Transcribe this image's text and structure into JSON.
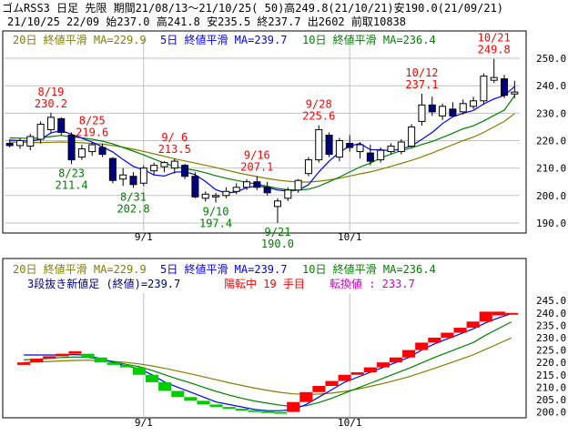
{
  "header": {
    "line1": "ゴムRSS3 日足 先限 期間21/08/13～21/10/25( 50)高249.8(21/10/21)安190.0(21/09/21)",
    "line2": "21/10/25 22/09 始237.0 高241.8 安235.5 終237.7 出2602 前取10838"
  },
  "upper_legend": {
    "ma20": "20日 終値平滑 MA=229.9",
    "ma5": "5日 終値平滑 MA=239.7",
    "ma10": "10日 終値平滑 MA=236.4"
  },
  "lower_legend": {
    "ma20": "20日 終値平滑 MA=229.9",
    "ma5": "5日 終値平滑 MA=239.7",
    "ma10": "10日 終値平滑 MA=236.4",
    "line2_a": "3段抜き新値足 (終値)=239.7",
    "line2_b": "陽転中 19 手目",
    "line2_c": "転換値 : 233.7"
  },
  "colors": {
    "up": "#ffffff",
    "down": "#000080",
    "ma5": "#0000ff",
    "ma10": "#008000",
    "ma20": "#808000",
    "label_high": "#ff0000",
    "label_low": "#008000",
    "kagi_up": "#ff0000",
    "kagi_down": "#00cc00",
    "grid": "#c0c0c0"
  },
  "chart_data": [
    {
      "type": "candlestick",
      "title": "ゴムRSS3 日足 先限",
      "x_ticks": [
        "9/1",
        "10/1"
      ],
      "ylim": [
        187,
        254
      ],
      "y_ticks": [
        190.0,
        200.0,
        210.0,
        220.0,
        230.0,
        240.0,
        250.0
      ],
      "candles": [
        {
          "date": "8/13",
          "o": 219.0,
          "h": 220.5,
          "l": 217.5,
          "c": 218.2
        },
        {
          "date": "8/16",
          "o": 218.2,
          "h": 221.0,
          "l": 217.0,
          "c": 220.0
        },
        {
          "date": "8/17",
          "o": 218.0,
          "h": 222.5,
          "l": 216.5,
          "c": 221.5
        },
        {
          "date": "8/18",
          "o": 220.5,
          "h": 227.0,
          "l": 219.0,
          "c": 226.0
        },
        {
          "date": "8/19",
          "o": 224.0,
          "h": 230.2,
          "l": 223.0,
          "c": 228.5
        },
        {
          "date": "8/20",
          "o": 228.0,
          "h": 228.5,
          "l": 222.0,
          "c": 223.0
        },
        {
          "date": "8/23",
          "o": 222.0,
          "h": 223.0,
          "l": 211.4,
          "c": 213.0
        },
        {
          "date": "8/24",
          "o": 214.0,
          "h": 218.5,
          "l": 213.0,
          "c": 217.0
        },
        {
          "date": "8/25",
          "o": 216.0,
          "h": 219.6,
          "l": 214.5,
          "c": 218.5
        },
        {
          "date": "8/26",
          "o": 217.5,
          "h": 219.0,
          "l": 214.0,
          "c": 215.0
        },
        {
          "date": "8/27",
          "o": 213.5,
          "h": 214.0,
          "l": 204.5,
          "c": 205.5
        },
        {
          "date": "8/30",
          "o": 206.0,
          "h": 210.0,
          "l": 203.5,
          "c": 207.5
        },
        {
          "date": "8/31",
          "o": 207.0,
          "h": 208.5,
          "l": 202.8,
          "c": 204.0
        },
        {
          "date": "9/1",
          "o": 204.5,
          "h": 211.0,
          "l": 203.5,
          "c": 210.0
        },
        {
          "date": "9/2",
          "o": 209.0,
          "h": 212.0,
          "l": 207.5,
          "c": 211.0
        },
        {
          "date": "9/3",
          "o": 210.5,
          "h": 212.5,
          "l": 208.5,
          "c": 212.0
        },
        {
          "date": "9/6",
          "o": 210.0,
          "h": 213.5,
          "l": 208.0,
          "c": 212.5
        },
        {
          "date": "9/7",
          "o": 211.0,
          "h": 211.5,
          "l": 206.0,
          "c": 207.0
        },
        {
          "date": "9/8",
          "o": 207.0,
          "h": 208.5,
          "l": 199.0,
          "c": 199.5
        },
        {
          "date": "9/9",
          "o": 199.0,
          "h": 201.5,
          "l": 197.8,
          "c": 200.5
        },
        {
          "date": "9/10",
          "o": 199.5,
          "h": 201.0,
          "l": 197.4,
          "c": 200.0
        },
        {
          "date": "9/13",
          "o": 200.0,
          "h": 203.0,
          "l": 199.0,
          "c": 201.5
        },
        {
          "date": "9/14",
          "o": 201.5,
          "h": 204.5,
          "l": 200.5,
          "c": 203.0
        },
        {
          "date": "9/15",
          "o": 203.0,
          "h": 206.0,
          "l": 202.0,
          "c": 205.0
        },
        {
          "date": "9/16",
          "o": 205.0,
          "h": 207.1,
          "l": 202.0,
          "c": 203.0
        },
        {
          "date": "9/17",
          "o": 203.0,
          "h": 205.0,
          "l": 200.0,
          "c": 201.0
        },
        {
          "date": "9/21",
          "o": 196.0,
          "h": 199.0,
          "l": 190.0,
          "c": 198.0
        },
        {
          "date": "9/22",
          "o": 199.0,
          "h": 203.0,
          "l": 198.0,
          "c": 202.0
        },
        {
          "date": "9/24",
          "o": 202.0,
          "h": 206.0,
          "l": 201.0,
          "c": 205.5
        },
        {
          "date": "9/27",
          "o": 208.0,
          "h": 214.0,
          "l": 207.0,
          "c": 213.0
        },
        {
          "date": "9/28",
          "o": 213.0,
          "h": 225.6,
          "l": 212.0,
          "c": 224.0
        },
        {
          "date": "9/29",
          "o": 222.0,
          "h": 223.0,
          "l": 214.0,
          "c": 215.0
        },
        {
          "date": "9/30",
          "o": 214.0,
          "h": 221.0,
          "l": 212.5,
          "c": 220.0
        },
        {
          "date": "10/1",
          "o": 219.0,
          "h": 222.0,
          "l": 216.0,
          "c": 217.5
        },
        {
          "date": "10/4",
          "o": 216.0,
          "h": 219.5,
          "l": 213.5,
          "c": 218.5
        },
        {
          "date": "10/5",
          "o": 215.5,
          "h": 218.5,
          "l": 211.0,
          "c": 212.5
        },
        {
          "date": "10/6",
          "o": 213.0,
          "h": 217.5,
          "l": 212.0,
          "c": 216.5
        },
        {
          "date": "10/7",
          "o": 216.0,
          "h": 219.0,
          "l": 215.0,
          "c": 218.0
        },
        {
          "date": "10/8",
          "o": 216.0,
          "h": 220.5,
          "l": 215.0,
          "c": 219.5
        },
        {
          "date": "10/11",
          "o": 218.0,
          "h": 226.0,
          "l": 217.5,
          "c": 225.0
        },
        {
          "date": "10/12",
          "o": 227.0,
          "h": 237.1,
          "l": 225.5,
          "c": 233.0
        },
        {
          "date": "10/13",
          "o": 233.0,
          "h": 236.0,
          "l": 229.0,
          "c": 230.5
        },
        {
          "date": "10/14",
          "o": 229.0,
          "h": 233.5,
          "l": 227.5,
          "c": 232.5
        },
        {
          "date": "10/15",
          "o": 231.5,
          "h": 234.0,
          "l": 228.5,
          "c": 229.0
        },
        {
          "date": "10/18",
          "o": 230.5,
          "h": 235.0,
          "l": 229.5,
          "c": 233.5
        },
        {
          "date": "10/19",
          "o": 232.5,
          "h": 236.0,
          "l": 231.5,
          "c": 234.5
        },
        {
          "date": "10/20",
          "o": 234.5,
          "h": 244.5,
          "l": 233.0,
          "c": 243.5
        },
        {
          "date": "10/21",
          "o": 242.0,
          "h": 249.8,
          "l": 241.0,
          "c": 243.0
        },
        {
          "date": "10/22",
          "o": 242.5,
          "h": 244.0,
          "l": 235.5,
          "c": 236.5
        },
        {
          "date": "10/25",
          "o": 237.0,
          "h": 241.8,
          "l": 235.5,
          "c": 237.7
        }
      ],
      "annotations": [
        {
          "date": "8/19",
          "value": "230.2",
          "label": "8/19",
          "pos": "above"
        },
        {
          "date": "8/23",
          "value": "211.4",
          "label": "8/23",
          "pos": "below"
        },
        {
          "date": "8/25",
          "value": "219.6",
          "label": "8/25",
          "pos": "above"
        },
        {
          "date": "8/31",
          "value": "202.8",
          "label": "8/31",
          "pos": "below"
        },
        {
          "date": "9/6",
          "value": "213.5",
          "label": "9/ 6",
          "pos": "above"
        },
        {
          "date": "9/10",
          "value": "197.4",
          "label": "9/10",
          "pos": "below"
        },
        {
          "date": "9/16",
          "value": "207.1",
          "label": "9/16",
          "pos": "above"
        },
        {
          "date": "9/21",
          "value": "190.0",
          "label": "9/21",
          "pos": "below"
        },
        {
          "date": "9/28",
          "value": "225.6",
          "label": "9/28",
          "pos": "above"
        },
        {
          "date": "10/12",
          "value": "237.1",
          "label": "10/12",
          "pos": "above"
        },
        {
          "date": "10/21",
          "value": "249.8",
          "label": "10/21",
          "pos": "above"
        }
      ],
      "ma5": [
        220.2,
        220.0,
        219.8,
        220.5,
        222.8,
        223.7,
        222.3,
        220.9,
        219.5,
        217.7,
        215.9,
        213.1,
        210.6,
        209.4,
        207.5,
        207.1,
        208.5,
        208.7,
        207.6,
        205.1,
        202.1,
        200.9,
        201.3,
        202.9,
        203.5,
        203.0,
        202.0,
        201.6,
        202.0,
        203.9,
        208.6,
        212.5,
        215.8,
        218.0,
        219.0,
        216.7,
        216.7,
        216.3,
        217.0,
        218.0,
        220.5,
        223.0,
        226.2,
        228.7,
        230.0,
        231.0,
        233.4,
        235.2,
        236.5,
        239.7
      ],
      "ma10": [
        221.0,
        220.9,
        220.8,
        221.0,
        221.5,
        221.9,
        221.4,
        221.0,
        220.5,
        219.8,
        218.8,
        217.5,
        216.2,
        214.8,
        213.3,
        211.8,
        210.6,
        209.8,
        209.2,
        208.3,
        207.2,
        206.3,
        205.5,
        204.8,
        204.1,
        203.4,
        202.6,
        202.1,
        202.0,
        202.3,
        203.4,
        205.0,
        206.7,
        208.6,
        210.4,
        211.8,
        213.7,
        215.1,
        216.4,
        217.3,
        218.6,
        219.7,
        221.2,
        222.7,
        224.3,
        225.4,
        227.2,
        229.2,
        231.1,
        236.4
      ],
      "ma20": [
        219.5,
        219.4,
        219.3,
        219.3,
        219.4,
        219.5,
        219.4,
        219.2,
        219.0,
        218.7,
        218.2,
        217.6,
        216.9,
        216.1,
        215.2,
        214.3,
        213.4,
        212.6,
        211.8,
        211.0,
        210.2,
        209.3,
        208.4,
        207.6,
        206.9,
        206.2,
        205.6,
        205.2,
        204.9,
        204.9,
        205.2,
        205.7,
        206.3,
        207.1,
        207.9,
        208.6,
        209.6,
        210.6,
        211.7,
        212.8,
        214.1,
        215.5,
        217.0,
        218.5,
        220.0,
        221.3,
        223.0,
        225.0,
        227.0,
        229.9
      ]
    },
    {
      "type": "three_line_break",
      "title": "3段抜き新値足 (終値)",
      "x_ticks": [
        "9/1",
        "10/1"
      ],
      "ylim": [
        198,
        248
      ],
      "y_ticks": [
        200.0,
        205.0,
        210.0,
        215.0,
        220.0,
        225.0,
        230.0,
        235.0,
        240.0,
        245.0
      ],
      "bricks": [
        {
          "dir": "up",
          "from": 219.0,
          "to": 220.0
        },
        {
          "dir": "up",
          "from": 220.0,
          "to": 221.5
        },
        {
          "dir": "up",
          "from": 221.5,
          "to": 222.5
        },
        {
          "dir": "up",
          "from": 222.5,
          "to": 223.5
        },
        {
          "dir": "up",
          "from": 223.5,
          "to": 224.5
        },
        {
          "dir": "down",
          "from": 223.5,
          "to": 222.0
        },
        {
          "dir": "down",
          "from": 222.0,
          "to": 220.0
        },
        {
          "dir": "down",
          "from": 220.0,
          "to": 219.0
        },
        {
          "dir": "down",
          "from": 219.0,
          "to": 218.0
        },
        {
          "dir": "down",
          "from": 218.0,
          "to": 215.0
        },
        {
          "dir": "down",
          "from": 215.0,
          "to": 212.0
        },
        {
          "dir": "down",
          "from": 212.0,
          "to": 208.5
        },
        {
          "dir": "down",
          "from": 208.5,
          "to": 206.0
        },
        {
          "dir": "down",
          "from": 206.0,
          "to": 204.5
        },
        {
          "dir": "down",
          "from": 204.5,
          "to": 203.0
        },
        {
          "dir": "down",
          "from": 203.0,
          "to": 202.0
        },
        {
          "dir": "down",
          "from": 202.0,
          "to": 201.3
        },
        {
          "dir": "down",
          "from": 201.3,
          "to": 200.7
        },
        {
          "dir": "down",
          "from": 200.7,
          "to": 200.3
        },
        {
          "dir": "down",
          "from": 200.3,
          "to": 200.0
        },
        {
          "dir": "down",
          "from": 200.0,
          "to": 199.8
        },
        {
          "dir": "up",
          "from": 200.0,
          "to": 204.0
        },
        {
          "dir": "up",
          "from": 204.0,
          "to": 208.0
        },
        {
          "dir": "up",
          "from": 208.0,
          "to": 210.5
        },
        {
          "dir": "up",
          "from": 210.5,
          "to": 212.5
        },
        {
          "dir": "up",
          "from": 212.5,
          "to": 215.0
        },
        {
          "dir": "up",
          "from": 215.0,
          "to": 216.0
        },
        {
          "dir": "up",
          "from": 216.0,
          "to": 218.0
        },
        {
          "dir": "up",
          "from": 218.0,
          "to": 220.0
        },
        {
          "dir": "up",
          "from": 220.0,
          "to": 222.0
        },
        {
          "dir": "up",
          "from": 222.0,
          "to": 225.0
        },
        {
          "dir": "up",
          "from": 225.0,
          "to": 228.0
        },
        {
          "dir": "up",
          "from": 228.0,
          "to": 230.0
        },
        {
          "dir": "up",
          "from": 230.0,
          "to": 232.0
        },
        {
          "dir": "up",
          "from": 232.0,
          "to": 234.0
        },
        {
          "dir": "up",
          "from": 234.0,
          "to": 236.5
        },
        {
          "dir": "up",
          "from": 236.5,
          "to": 240.5
        },
        {
          "dir": "up",
          "from": 239.0,
          "to": 240.5
        },
        {
          "dir": "up",
          "from": 239.5,
          "to": 240.0
        }
      ],
      "ma_fast": [
        223.0,
        223.0,
        223.0,
        223.0,
        223.2,
        222.8,
        221.5,
        220.0,
        218.5,
        217.5,
        215.0,
        212.0,
        210.0,
        208.0,
        206.0,
        204.0,
        203.0,
        202.0,
        201.0,
        200.5,
        200.5,
        201.0,
        203.0,
        206.0,
        209.0,
        212.0,
        214.0,
        216.0,
        218.0,
        220.0,
        222.0,
        225.0,
        227.5,
        229.5,
        231.5,
        233.5,
        236.0,
        238.0,
        239.7
      ],
      "ma_mid": [
        221.0,
        221.3,
        221.6,
        222.0,
        222.2,
        222.0,
        221.3,
        220.3,
        219.2,
        218.3,
        216.8,
        215.0,
        213.3,
        211.7,
        210.0,
        208.3,
        206.8,
        205.5,
        204.4,
        203.5,
        202.7,
        202.2,
        202.5,
        203.8,
        205.5,
        207.6,
        209.6,
        211.6,
        213.6,
        215.6,
        217.6,
        219.8,
        222.0,
        224.0,
        226.0,
        228.0,
        231.0,
        233.7,
        236.4
      ],
      "ma_slow": [
        220.0,
        220.2,
        220.4,
        220.6,
        220.8,
        220.9,
        220.7,
        220.4,
        220.0,
        219.4,
        218.6,
        217.6,
        216.5,
        215.4,
        214.2,
        213.0,
        211.8,
        210.7,
        209.6,
        208.7,
        207.9,
        207.3,
        207.1,
        207.2,
        207.6,
        208.3,
        209.2,
        210.3,
        211.5,
        212.8,
        214.2,
        215.9,
        217.6,
        219.4,
        221.2,
        223.0,
        225.3,
        227.6,
        229.9
      ]
    }
  ]
}
